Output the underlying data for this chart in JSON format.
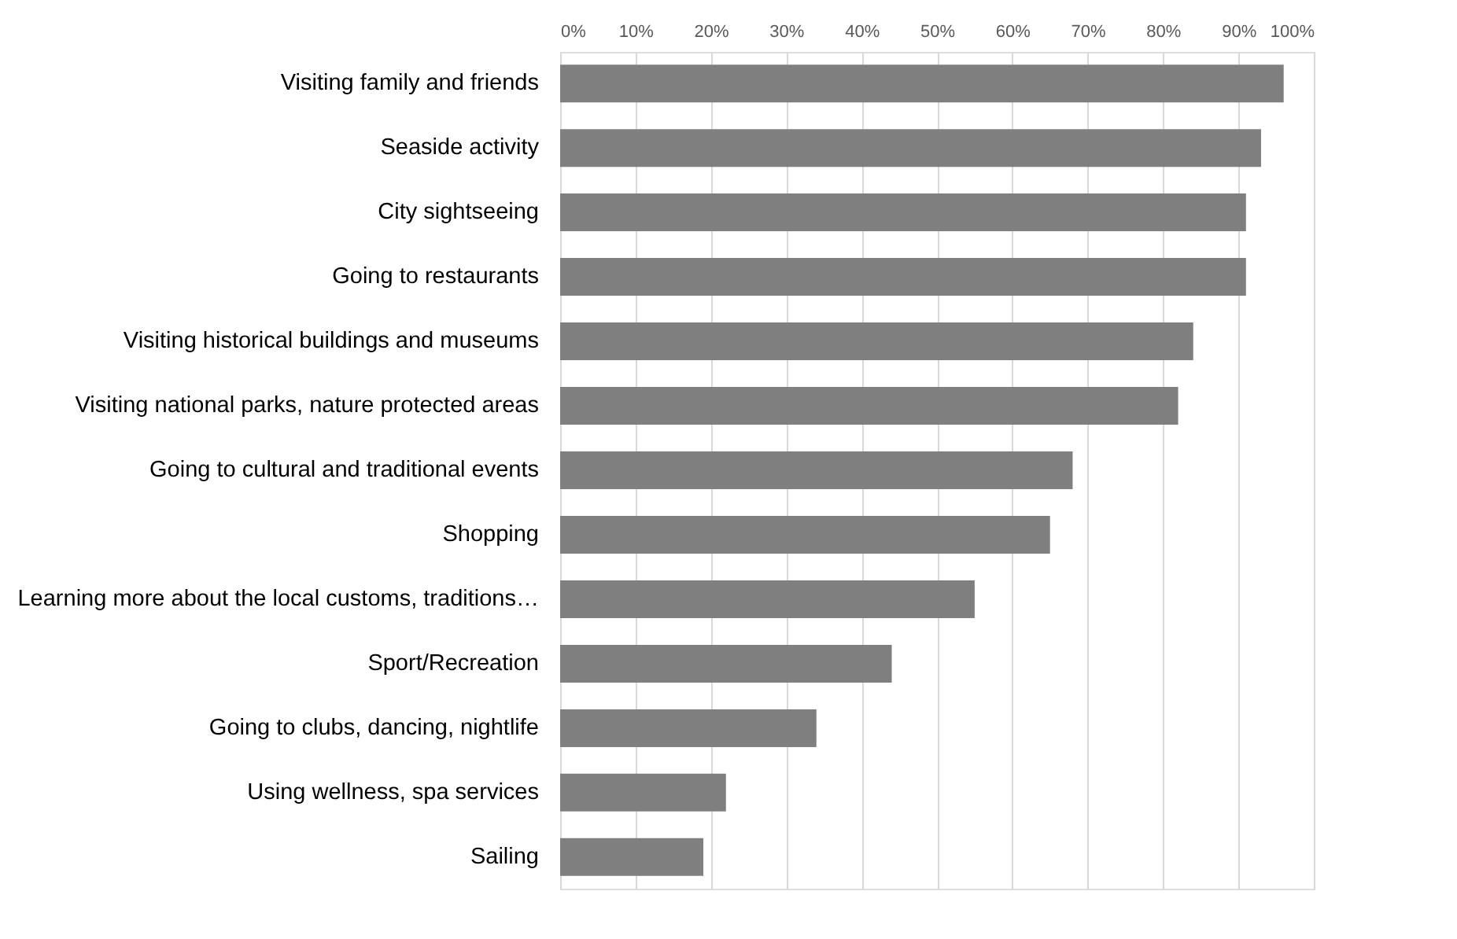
{
  "chart_data": {
    "type": "bar",
    "orientation": "horizontal",
    "categories": [
      "Visiting family and friends",
      "Seaside activity",
      "City sightseeing",
      "Going to restaurants",
      "Visiting historical buildings and museums",
      "Visiting national parks, nature protected areas",
      "Going to cultural and traditional events",
      "Shopping",
      "Learning more about the local customs, traditions…",
      "Sport/Recreation",
      "Going to clubs, dancing, nightlife",
      "Using wellness, spa services",
      "Sailing"
    ],
    "values": [
      96,
      93,
      91,
      91,
      84,
      82,
      68,
      65,
      55,
      44,
      34,
      22,
      19
    ],
    "color": "#7f7f7f",
    "xlim": [
      0,
      100
    ],
    "xticks": [
      {
        "value": 0,
        "label": "0%"
      },
      {
        "value": 10,
        "label": "10%"
      },
      {
        "value": 20,
        "label": "20%"
      },
      {
        "value": 30,
        "label": "30%"
      },
      {
        "value": 40,
        "label": "40%"
      },
      {
        "value": 50,
        "label": "50%"
      },
      {
        "value": 60,
        "label": "60%"
      },
      {
        "value": 70,
        "label": "70%"
      },
      {
        "value": 80,
        "label": "80%"
      },
      {
        "value": 90,
        "label": "90%"
      },
      {
        "value": 100,
        "label": "100%"
      }
    ],
    "grid": "x"
  }
}
